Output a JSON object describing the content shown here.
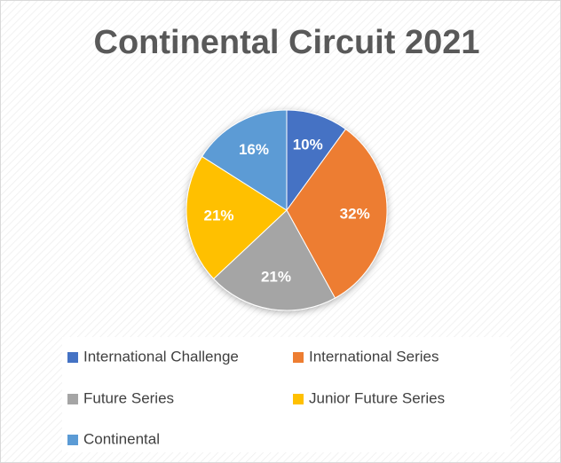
{
  "chart_data": {
    "type": "pie",
    "title": "Continental Circuit 2021",
    "categories": [
      "International Challenge",
      "International Series",
      "Future Series",
      "Junior Future Series",
      "Continental"
    ],
    "values": [
      10,
      32,
      21,
      21,
      16
    ],
    "value_labels": [
      "10%",
      "32%",
      "21%",
      "21%",
      "16%"
    ],
    "colors": [
      "#4472c4",
      "#ed7d31",
      "#a5a5a5",
      "#ffc000",
      "#5b9bd5"
    ],
    "legend": "bottom"
  }
}
